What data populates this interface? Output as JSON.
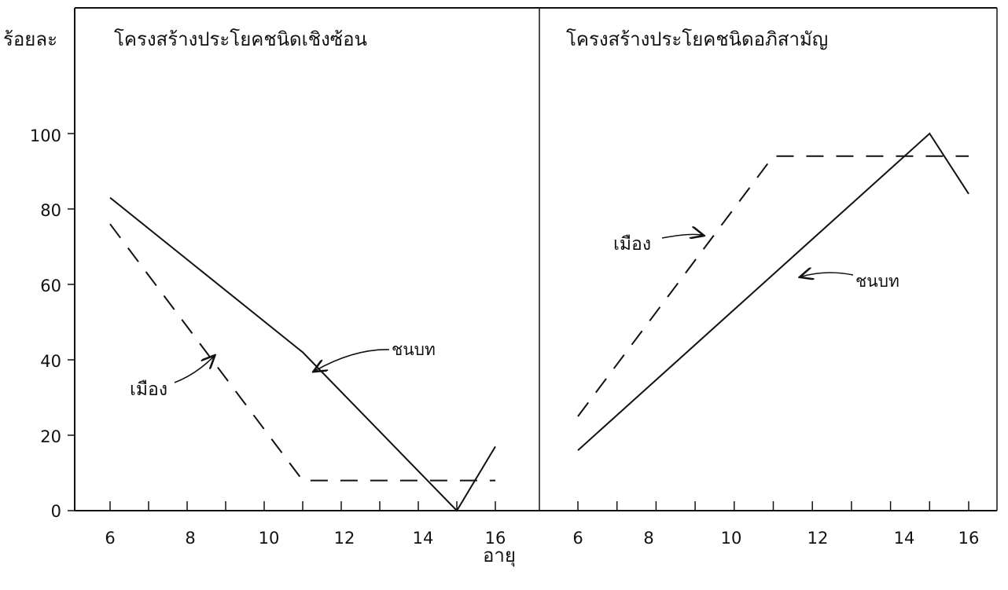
{
  "chart_data": {
    "type": "line",
    "ylabel": "ร้อยละ",
    "xlabel": "อายุ",
    "ylim": [
      0,
      100
    ],
    "yticks": [
      "0",
      "20",
      "40",
      "60",
      "80",
      "100"
    ],
    "grid": false,
    "panels": [
      {
        "title": "โครงสร้างประโยคชนิดเชิงซ้อน",
        "xticks": [
          "6",
          "8",
          "10",
          "12",
          "14",
          "16"
        ],
        "series": [
          {
            "name": "ชนบท",
            "style": "solid",
            "x": [
              6,
              11,
              15,
              16
            ],
            "y": [
              83,
              42,
              0,
              17
            ]
          },
          {
            "name": "เมือง",
            "style": "dashed",
            "x": [
              6,
              11,
              16
            ],
            "y": [
              76,
              8,
              8
            ]
          }
        ],
        "annotations": [
          {
            "text": "ชนบท",
            "series": "ชนบท"
          },
          {
            "text": "เมือง",
            "series": "เมือง"
          }
        ]
      },
      {
        "title": "โครงสร้างประโยคชนิดอภิสามัญ",
        "xticks": [
          "6",
          "8",
          "10",
          "12",
          "14",
          "16"
        ],
        "series": [
          {
            "name": "ชนบท",
            "style": "solid",
            "x": [
              6,
              15,
              16
            ],
            "y": [
              16,
              100,
              84
            ]
          },
          {
            "name": "เมือง",
            "style": "dashed",
            "x": [
              6,
              11,
              16
            ],
            "y": [
              25,
              94,
              94
            ]
          }
        ],
        "annotations": [
          {
            "text": "เมือง",
            "series": "เมือง"
          },
          {
            "text": "ชนบท",
            "series": "ชนบท"
          }
        ]
      }
    ]
  },
  "colors": {
    "ink": "#111111",
    "background": "#ffffff"
  }
}
